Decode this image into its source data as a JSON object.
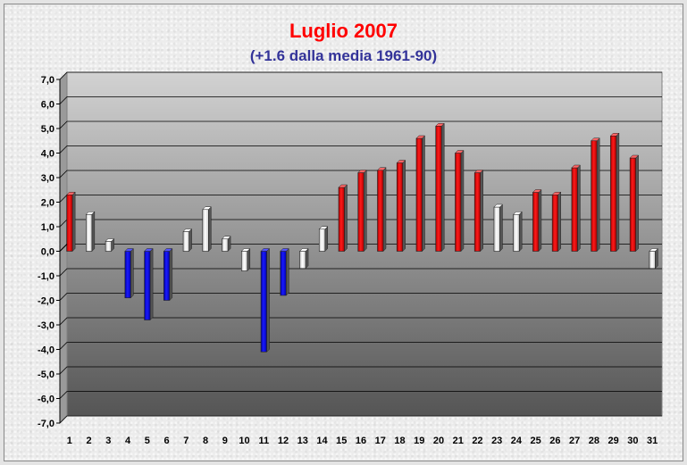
{
  "chart_data": {
    "type": "bar",
    "title": "Luglio 2007",
    "subtitle": "(+1.6 dalla media 1961-90)",
    "xlabel": "",
    "ylabel": "",
    "ylim": [
      -7,
      7
    ],
    "yticks": [
      "-7,0",
      "-6,0",
      "-5,0",
      "-4,0",
      "-3,0",
      "-2,0",
      "-1,0",
      "0,0",
      "1,0",
      "2,0",
      "3,0",
      "4,0",
      "5,0",
      "6,0",
      "7,0"
    ],
    "grid": true,
    "categories": [
      "1",
      "2",
      "3",
      "4",
      "5",
      "6",
      "7",
      "8",
      "9",
      "10",
      "11",
      "12",
      "13",
      "14",
      "15",
      "16",
      "17",
      "18",
      "19",
      "20",
      "21",
      "22",
      "23",
      "24",
      "25",
      "26",
      "27",
      "28",
      "29",
      "30",
      "31"
    ],
    "values": [
      2.3,
      1.5,
      0.4,
      -1.9,
      -2.8,
      -2.0,
      0.8,
      1.7,
      0.5,
      -0.8,
      -4.1,
      -1.8,
      -0.7,
      0.9,
      2.6,
      3.2,
      3.3,
      3.6,
      4.6,
      5.1,
      4.0,
      3.2,
      1.8,
      1.5,
      2.4,
      2.3,
      3.4,
      4.5,
      4.7,
      3.8,
      -0.7
    ],
    "colors": {
      "warm": "#ee0000",
      "cold": "#0000ee",
      "neutral": "#ffffff",
      "title": "#ff0000",
      "subtitle": "#333399"
    }
  }
}
